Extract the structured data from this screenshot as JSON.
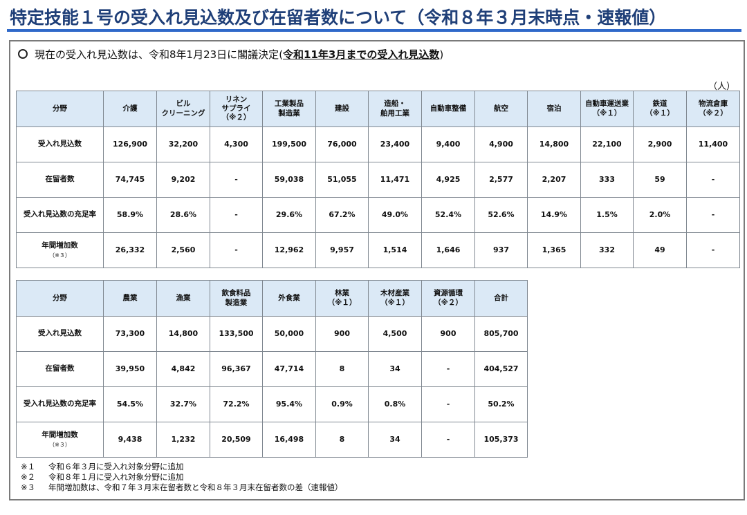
{
  "title": "特定技能１号の受入れ見込数及び在留者数について（令和８年３月末時点・速報値）",
  "lead": {
    "text": "現在の受入れ見込数は、令和8年1月23日に閣議決定",
    "open_paren": "(",
    "emphasis": "令和11年3月までの受入れ見込数",
    "close_paren": ")"
  },
  "unit": "（人）",
  "table1": {
    "headers": [
      {
        "label": "分野",
        "note": ""
      },
      {
        "label": "介護",
        "note": ""
      },
      {
        "label": "ビル\nクリーニング",
        "note": ""
      },
      {
        "label": "リネン\nサプライ\n（※２）",
        "note": ""
      },
      {
        "label": "工業製品\n製造業",
        "note": ""
      },
      {
        "label": "建設",
        "note": ""
      },
      {
        "label": "造船・\n舶用工業",
        "note": ""
      },
      {
        "label": "自動車整備",
        "note": ""
      },
      {
        "label": "航空",
        "note": ""
      },
      {
        "label": "宿泊",
        "note": ""
      },
      {
        "label": "自動車運送業\n（※１）",
        "note": ""
      },
      {
        "label": "鉄道\n（※１）",
        "note": ""
      },
      {
        "label": "物流倉庫\n（※２）",
        "note": ""
      }
    ],
    "rows": [
      {
        "label": "受入れ見込数",
        "note": "",
        "cells": [
          "126,900",
          "32,200",
          "4,300",
          "199,500",
          "76,000",
          "23,400",
          "9,400",
          "4,900",
          "14,800",
          "22,100",
          "2,900",
          "11,400"
        ]
      },
      {
        "label": "在留者数",
        "note": "",
        "cells": [
          "74,745",
          "9,202",
          "-",
          "59,038",
          "51,055",
          "11,471",
          "4,925",
          "2,577",
          "2,207",
          "333",
          "59",
          "-"
        ]
      },
      {
        "label": "受入れ見込数の充足率",
        "note": "",
        "cells": [
          "58.9%",
          "28.6%",
          "-",
          "29.6%",
          "67.2%",
          "49.0%",
          "52.4%",
          "52.6%",
          "14.9%",
          "1.5%",
          "2.0%",
          "-"
        ]
      },
      {
        "label": "年間増加数",
        "note": "（※３）",
        "cells": [
          "26,332",
          "2,560",
          "-",
          "12,962",
          "9,957",
          "1,514",
          "1,646",
          "937",
          "1,365",
          "332",
          "49",
          "-"
        ]
      }
    ]
  },
  "table2": {
    "headers": [
      {
        "label": "分野",
        "note": ""
      },
      {
        "label": "農業",
        "note": ""
      },
      {
        "label": "漁業",
        "note": ""
      },
      {
        "label": "飲食料品\n製造業",
        "note": ""
      },
      {
        "label": "外食業",
        "note": ""
      },
      {
        "label": "林業\n（※１）",
        "note": ""
      },
      {
        "label": "木材産業\n（※１）",
        "note": ""
      },
      {
        "label": "資源循環\n（※２）",
        "note": ""
      },
      {
        "label": "合計",
        "note": ""
      }
    ],
    "rows": [
      {
        "label": "受入れ見込数",
        "note": "",
        "cells": [
          "73,300",
          "14,800",
          "133,500",
          "50,000",
          "900",
          "4,500",
          "900",
          "805,700"
        ]
      },
      {
        "label": "在留者数",
        "note": "",
        "cells": [
          "39,950",
          "4,842",
          "96,367",
          "47,714",
          "8",
          "34",
          "-",
          "404,527"
        ]
      },
      {
        "label": "受入れ見込数の充足率",
        "note": "",
        "cells": [
          "54.5%",
          "32.7%",
          "72.2%",
          "95.4%",
          "0.9%",
          "0.8%",
          "-",
          "50.2%"
        ]
      },
      {
        "label": "年間増加数",
        "note": "（※３）",
        "cells": [
          "9,438",
          "1,232",
          "20,509",
          "16,498",
          "8",
          "34",
          "-",
          "105,373"
        ]
      }
    ]
  },
  "notes": [
    {
      "mark": "※１",
      "text": "令和６年３月に受入れ対象分野に追加"
    },
    {
      "mark": "※２",
      "text": "令和８年１月に受入れ対象分野に追加"
    },
    {
      "mark": "※３",
      "text": "年間増加数は、令和７年３月末在留者数と令和８年３月末在留者数の差（速報値）"
    }
  ]
}
